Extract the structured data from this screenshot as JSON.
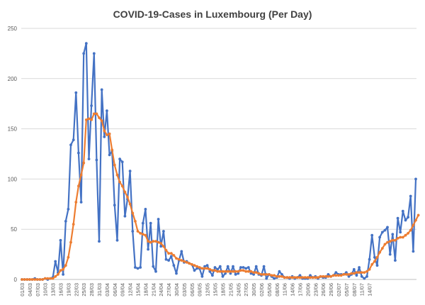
{
  "chart_data": {
    "type": "line",
    "title": "COVID-19-Cases in Luxembourg (Per Day)",
    "xlabel": "",
    "ylabel": "",
    "ylim": [
      0,
      250
    ],
    "yticks": [
      0,
      50,
      100,
      150,
      200,
      250
    ],
    "grid": true,
    "legend": "none",
    "x_tick_labels": [
      "01/03",
      "04/03",
      "07/03",
      "10/03",
      "13/03",
      "16/03",
      "19/03",
      "22/03",
      "25/03",
      "28/03",
      "31/03",
      "03/04",
      "06/04",
      "09/04",
      "12/04",
      "15/04",
      "18/04",
      "21/04",
      "24/04",
      "27/04",
      "30/04",
      "03/05",
      "06/05",
      "09/05",
      "12/05",
      "15/05",
      "18/05",
      "21/05",
      "24/05",
      "27/05",
      "30/05",
      "02/06",
      "05/06",
      "08/06",
      "11/06",
      "14/06",
      "17/06",
      "20/06",
      "23/06",
      "26/06",
      "29/06",
      "02/07",
      "05/07",
      "08/07",
      "11/07",
      "14/07"
    ],
    "x_tick_step_days": 3,
    "series": [
      {
        "color": "#4472c4",
        "values": [
          0,
          0,
          0,
          0,
          0,
          1,
          0,
          0,
          0,
          1,
          0,
          1,
          2,
          18,
          7,
          39,
          5,
          58,
          70,
          134,
          139,
          186,
          126,
          77,
          225,
          235,
          120,
          173,
          225,
          119,
          38,
          189,
          142,
          168,
          124,
          128,
          74,
          39,
          120,
          117,
          63,
          80,
          108,
          48,
          12,
          11,
          12,
          56,
          70,
          30,
          56,
          13,
          8,
          60,
          33,
          48,
          20,
          19,
          23,
          14,
          6,
          19,
          28,
          17,
          18,
          16,
          15,
          9,
          11,
          11,
          3,
          13,
          14,
          8,
          4,
          12,
          10,
          13,
          3,
          6,
          13,
          6,
          13,
          5,
          6,
          12,
          12,
          11,
          12,
          6,
          5,
          13,
          5,
          4,
          13,
          1,
          5,
          3,
          1,
          2,
          8,
          5,
          2,
          2,
          1,
          3,
          1,
          2,
          4,
          1,
          1,
          1,
          4,
          2,
          3,
          1,
          3,
          2,
          2,
          5,
          3,
          4,
          7,
          5,
          5,
          5,
          7,
          3,
          5,
          10,
          4,
          12,
          3,
          1,
          3,
          20,
          44,
          22,
          14,
          42,
          47,
          49,
          52,
          25,
          45,
          19,
          61,
          47,
          68,
          59,
          62,
          83,
          28,
          100
        ]
      },
      {
        "color": "#ed7d31",
        "values": [
          0,
          0,
          0,
          0,
          0,
          0,
          0,
          0,
          0,
          1,
          1,
          1,
          1,
          3,
          5,
          9,
          10,
          14,
          22,
          37,
          55,
          77,
          93,
          104,
          116,
          159,
          160,
          159,
          165,
          165,
          161,
          158,
          148,
          144,
          145,
          129,
          114,
          104,
          97,
          93,
          87,
          82,
          75,
          66,
          58,
          48,
          46,
          45,
          44,
          38,
          37,
          38,
          38,
          37,
          36,
          33,
          29,
          26,
          26,
          24,
          21,
          20,
          19,
          18,
          17,
          16,
          15,
          14,
          13,
          12,
          11,
          11,
          11,
          10,
          9,
          9,
          8,
          8,
          8,
          8,
          8,
          8,
          8,
          8,
          8,
          9,
          9,
          8,
          8,
          8,
          7,
          7,
          6,
          5,
          5,
          5,
          5,
          4,
          4,
          3,
          3,
          3,
          2,
          2,
          2,
          2,
          2,
          2,
          2,
          2,
          2,
          2,
          2,
          2,
          2,
          2,
          3,
          3,
          3,
          3,
          3,
          4,
          4,
          4,
          4,
          5,
          5,
          5,
          6,
          6,
          7,
          7,
          7,
          7,
          8,
          10,
          15,
          18,
          22,
          27,
          31,
          35,
          37,
          38,
          39,
          39,
          41,
          42,
          42,
          44,
          46,
          49,
          54,
          59,
          64
        ]
      }
    ]
  }
}
